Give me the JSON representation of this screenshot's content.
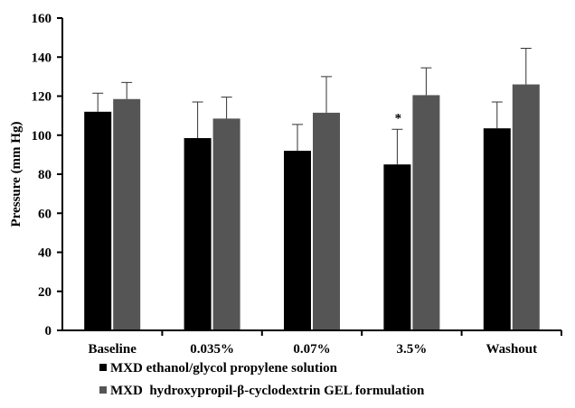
{
  "chart_data": {
    "type": "bar",
    "title": "",
    "xlabel": "",
    "ylabel": "Pressure (mm Hg)",
    "ylim": [
      0,
      160
    ],
    "yticks": [
      0,
      20,
      40,
      60,
      80,
      100,
      120,
      140,
      160
    ],
    "categories": [
      "Baseline",
      "0.035%",
      "0.07%",
      "3.5%",
      "Washout"
    ],
    "series": [
      {
        "name": "MXD ethanol/glycol propylene solution",
        "color": "#000000",
        "values": [
          112,
          98.5,
          92,
          85,
          103.5
        ],
        "errors": [
          9.5,
          18.5,
          13.5,
          18,
          13.5
        ]
      },
      {
        "name": "MXD  hydroxypropil-β-cyclodextrin GEL formulation",
        "color": "#555555",
        "values": [
          118.5,
          108.5,
          111.5,
          120.5,
          126
        ],
        "errors": [
          8.5,
          11,
          18.5,
          14,
          18.5
        ]
      }
    ],
    "annotations": [
      {
        "text": "*",
        "category": "3.5%",
        "series": 0
      }
    ],
    "grid": false,
    "legend_position": "bottom"
  }
}
